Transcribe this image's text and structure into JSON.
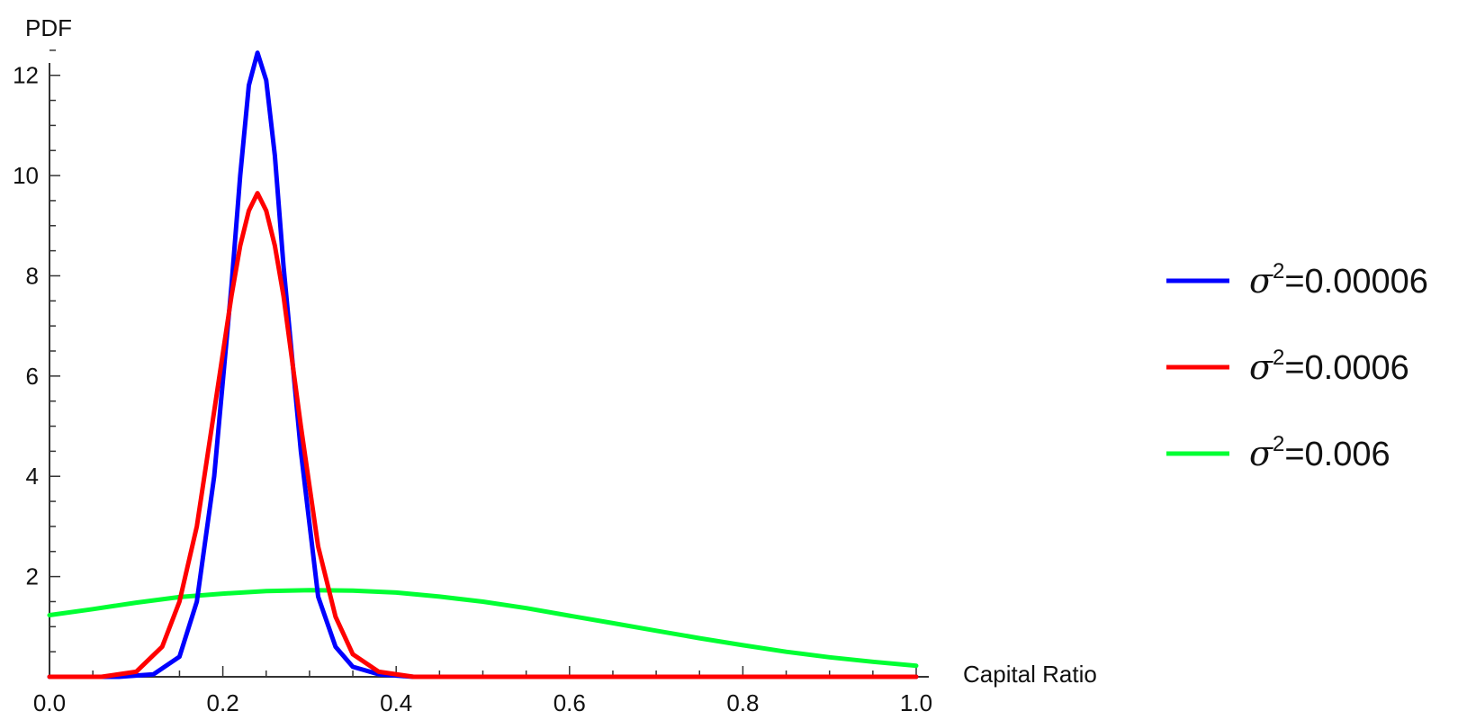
{
  "chart_data": {
    "type": "line",
    "xlabel": "Capital Ratio",
    "ylabel": "PDF",
    "xlim": [
      0.0,
      1.0
    ],
    "ylim": [
      0,
      13
    ],
    "x_ticks": [
      "0.0",
      "0.2",
      "0.4",
      "0.6",
      "0.8",
      "1.0"
    ],
    "y_ticks": [
      "2",
      "4",
      "6",
      "8",
      "10",
      "12"
    ],
    "legend_position": "right",
    "series": [
      {
        "name": "σ²=0.00006",
        "legend_symbol": "σ",
        "legend_exponent": "2",
        "legend_value": "=0.00006",
        "color": "#0000ff",
        "x": [
          0.0,
          0.08,
          0.12,
          0.15,
          0.17,
          0.19,
          0.21,
          0.22,
          0.23,
          0.24,
          0.25,
          0.26,
          0.27,
          0.29,
          0.31,
          0.33,
          0.35,
          0.38,
          0.42,
          1.0
        ],
        "y": [
          0.0,
          0.0,
          0.05,
          0.4,
          1.5,
          4.0,
          7.8,
          10.0,
          11.8,
          12.45,
          11.9,
          10.4,
          8.2,
          4.5,
          1.6,
          0.6,
          0.2,
          0.05,
          0.0,
          0.0
        ]
      },
      {
        "name": "σ²=0.0006",
        "legend_symbol": "σ",
        "legend_exponent": "2",
        "legend_value": "=0.0006",
        "color": "#ff0000",
        "x": [
          0.0,
          0.06,
          0.1,
          0.13,
          0.15,
          0.17,
          0.19,
          0.21,
          0.22,
          0.23,
          0.24,
          0.25,
          0.26,
          0.27,
          0.29,
          0.31,
          0.33,
          0.35,
          0.38,
          0.42,
          1.0
        ],
        "y": [
          0.0,
          0.0,
          0.1,
          0.6,
          1.5,
          3.0,
          5.3,
          7.6,
          8.6,
          9.3,
          9.65,
          9.3,
          8.6,
          7.6,
          5.0,
          2.6,
          1.2,
          0.45,
          0.1,
          0.0,
          0.0
        ]
      },
      {
        "name": "σ²=0.006",
        "legend_symbol": "σ",
        "legend_exponent": "2",
        "legend_value": "=0.006",
        "color": "#00ff33",
        "x": [
          0.0,
          0.05,
          0.1,
          0.15,
          0.2,
          0.25,
          0.3,
          0.35,
          0.4,
          0.45,
          0.5,
          0.55,
          0.6,
          0.65,
          0.7,
          0.75,
          0.8,
          0.85,
          0.9,
          0.95,
          1.0
        ],
        "y": [
          1.23,
          1.35,
          1.48,
          1.59,
          1.66,
          1.71,
          1.73,
          1.72,
          1.68,
          1.6,
          1.5,
          1.37,
          1.22,
          1.07,
          0.92,
          0.77,
          0.63,
          0.5,
          0.39,
          0.3,
          0.22
        ]
      }
    ]
  }
}
